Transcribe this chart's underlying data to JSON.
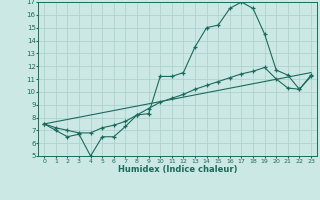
{
  "xlabel": "Humidex (Indice chaleur)",
  "bg_color": "#cce8e5",
  "grid_color": "#aacfcc",
  "line_color": "#1a6b5a",
  "xlim": [
    -0.5,
    23.5
  ],
  "ylim": [
    5,
    17
  ],
  "xticks": [
    0,
    1,
    2,
    3,
    4,
    5,
    6,
    7,
    8,
    9,
    10,
    11,
    12,
    13,
    14,
    15,
    16,
    17,
    18,
    19,
    20,
    21,
    22,
    23
  ],
  "yticks": [
    5,
    6,
    7,
    8,
    9,
    10,
    11,
    12,
    13,
    14,
    15,
    16,
    17
  ],
  "series1_x": [
    0,
    1,
    2,
    3,
    4,
    5,
    6,
    7,
    8,
    9,
    10,
    11,
    12,
    13,
    14,
    15,
    16,
    17,
    18,
    19,
    20,
    21,
    22,
    23
  ],
  "series1_y": [
    7.5,
    7.0,
    6.5,
    6.7,
    5.0,
    6.5,
    6.5,
    7.3,
    8.2,
    8.3,
    11.2,
    11.2,
    11.5,
    13.5,
    15.0,
    15.2,
    16.5,
    17.0,
    16.5,
    14.5,
    11.7,
    11.3,
    10.2,
    11.3
  ],
  "series2_x": [
    0,
    1,
    2,
    3,
    4,
    5,
    6,
    7,
    8,
    9,
    10,
    11,
    12,
    13,
    14,
    15,
    16,
    17,
    18,
    19,
    20,
    21,
    22,
    23
  ],
  "series2_y": [
    7.5,
    7.2,
    7.0,
    6.8,
    6.8,
    7.2,
    7.4,
    7.7,
    8.2,
    8.7,
    9.2,
    9.5,
    9.8,
    10.2,
    10.5,
    10.8,
    11.1,
    11.4,
    11.6,
    11.9,
    11.0,
    10.3,
    10.2,
    11.2
  ],
  "series3_x": [
    0,
    23
  ],
  "series3_y": [
    7.5,
    11.5
  ]
}
